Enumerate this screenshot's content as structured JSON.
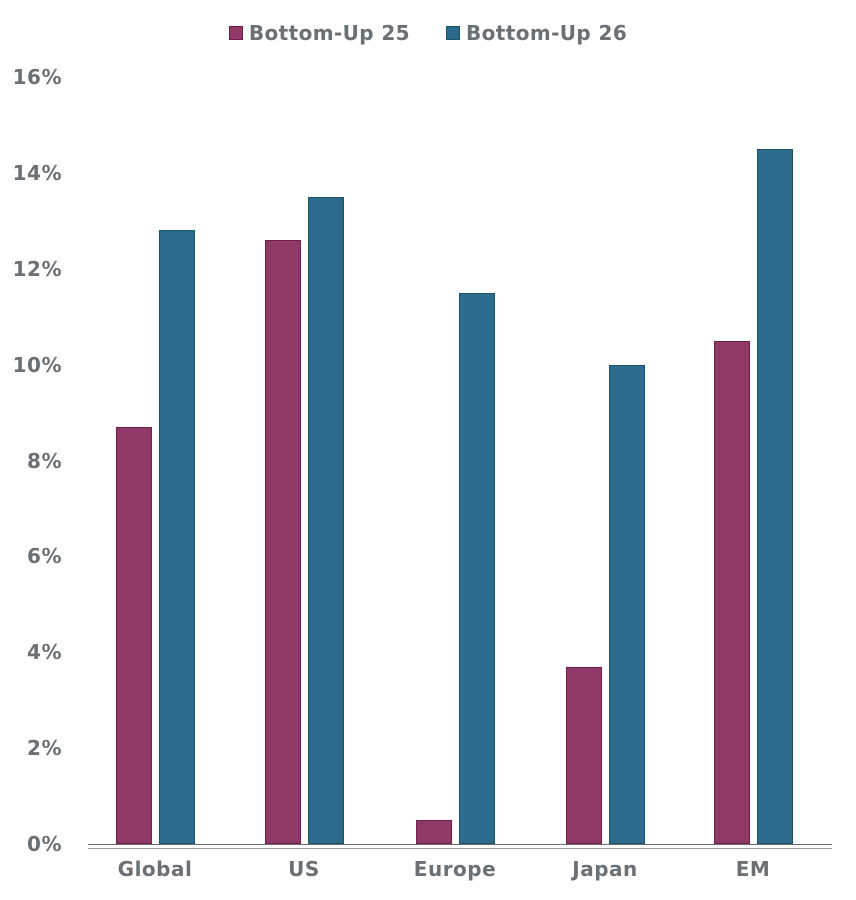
{
  "chart_data": {
    "type": "bar",
    "title": "",
    "xlabel": "",
    "ylabel": "",
    "categories": [
      "Global",
      "US",
      "Europe",
      "Japan",
      "EM"
    ],
    "series": [
      {
        "name": "Bottom-Up 25",
        "color": "#8f3a66",
        "border_color": "#6e2048",
        "values": [
          8.7,
          12.6,
          0.5,
          3.7,
          10.5
        ]
      },
      {
        "name": "Bottom-Up 26",
        "color": "#2d6b8c",
        "border_color": "#1a5566",
        "values": [
          12.8,
          13.5,
          11.5,
          10.0,
          14.5
        ]
      }
    ],
    "ylim": [
      0,
      16
    ],
    "ytick_step": 2,
    "ytick_labels": [
      "0%",
      "2%",
      "4%",
      "6%",
      "8%",
      "10%",
      "12%",
      "14%",
      "16%"
    ],
    "value_unit": "%",
    "legend_position": "top-center",
    "grid": false
  },
  "colors": {
    "background": "#ffffff",
    "label_text": "#6b7075",
    "axis_line": "#6e6e6e"
  }
}
